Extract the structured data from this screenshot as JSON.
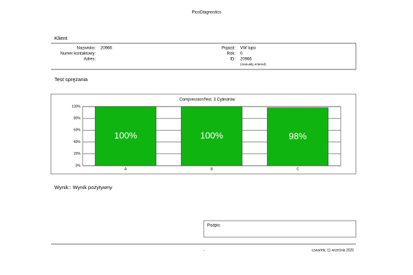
{
  "header": {
    "title": "PicoDiagnostics"
  },
  "client": {
    "heading": "Klient",
    "left": [
      {
        "label": "Nazwisko:",
        "value": "20966"
      },
      {
        "label": "Numer kontaktowy:"
      },
      {
        "label": "Adres:"
      }
    ],
    "right": [
      {
        "label": "Pojazd:",
        "value": "VW lupo"
      },
      {
        "label": "Rok:",
        "value": "0"
      },
      {
        "label": "ID:",
        "value": "20966"
      }
    ],
    "note": "(manually entered)"
  },
  "test": {
    "heading": "Test sprężania"
  },
  "chart_data": {
    "type": "bar",
    "title": "CompressionTest: 3 Cylindrów",
    "categories": [
      "A",
      "B",
      "C"
    ],
    "values": [
      100,
      100,
      98
    ],
    "value_labels": [
      "100%",
      "100%",
      "98%"
    ],
    "color": "#10b410",
    "ylim": [
      0,
      100
    ],
    "yticks": [
      {
        "value": 0,
        "label": "0%"
      },
      {
        "value": 20,
        "label": "20%"
      },
      {
        "value": 40,
        "label": "40%"
      },
      {
        "value": 60,
        "label": "60%"
      },
      {
        "value": 80,
        "label": "80%"
      },
      {
        "value": 100,
        "label": "100%"
      }
    ],
    "grid": true
  },
  "result": {
    "text": "Wynik:: Wynik pozytywny"
  },
  "signature": {
    "label": "Podpis:"
  },
  "footer": {
    "center": "-",
    "date": "czwartek, 11 września 2025"
  }
}
